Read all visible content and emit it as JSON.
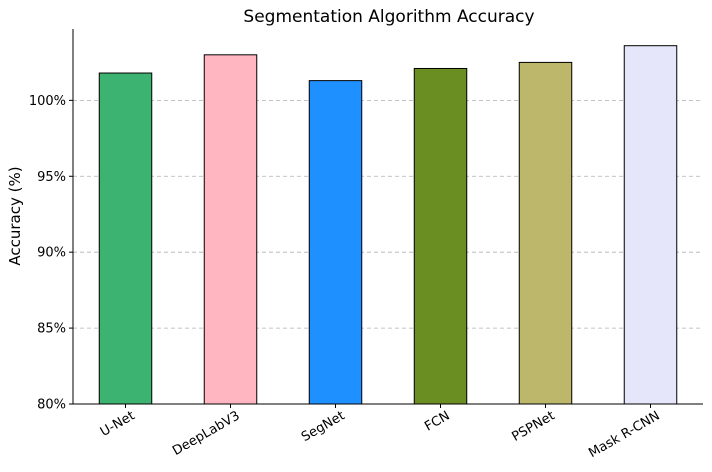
{
  "chart_data": {
    "type": "bar",
    "title": "Segmentation Algorithm Accuracy",
    "xlabel": "",
    "ylabel": "Accuracy (%)",
    "categories": [
      "U-Net",
      "DeepLabV3",
      "SegNet",
      "FCN",
      "PSPNet",
      "Mask R-CNN"
    ],
    "values": [
      101.8,
      103.0,
      101.3,
      102.1,
      102.5,
      103.6
    ],
    "colors": [
      "#3cb371",
      "#ffb6c1",
      "#1e90ff",
      "#6b8e23",
      "#bdb76b",
      "#e6e6fa"
    ],
    "ylim": [
      80,
      104.7
    ],
    "yticks": [
      80,
      85,
      90,
      95,
      100
    ],
    "ytick_labels": [
      "80%",
      "85%",
      "90%",
      "95%",
      "100%"
    ],
    "grid": "y-dashed",
    "legend": "none"
  }
}
